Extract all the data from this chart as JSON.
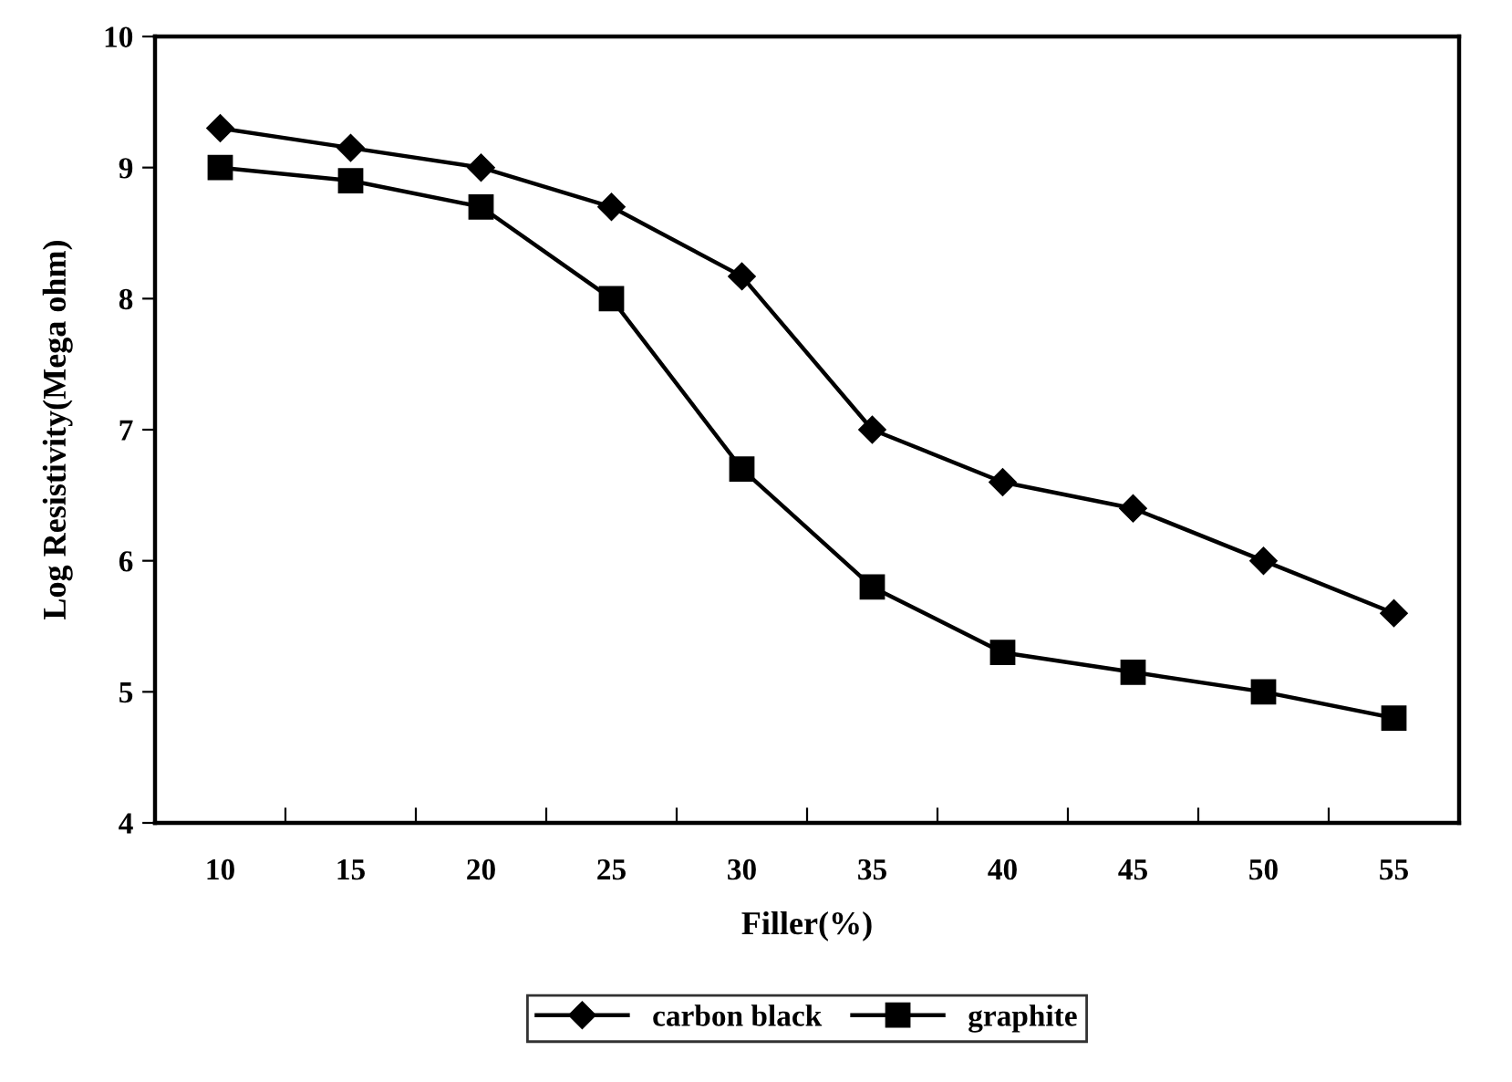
{
  "chart_data": {
    "type": "line",
    "xlabel": "Filler(%)",
    "ylabel": "Log Resistivity(Mega ohm)",
    "categories": [
      "10",
      "15",
      "20",
      "25",
      "30",
      "35",
      "40",
      "45",
      "50",
      "55"
    ],
    "series": [
      {
        "name": "carbon black",
        "color": "#000000",
        "marker": "diamond",
        "values": [
          9.3,
          9.15,
          9.0,
          8.7,
          8.17,
          7.0,
          6.6,
          6.4,
          6.0,
          5.6
        ]
      },
      {
        "name": "graphite",
        "color": "#000000",
        "marker": "square",
        "values": [
          9.0,
          8.9,
          8.7,
          8.0,
          6.7,
          5.8,
          5.3,
          5.15,
          5.0,
          4.8
        ]
      }
    ],
    "ylim": [
      4,
      10
    ],
    "yticks": [
      4,
      5,
      6,
      7,
      8,
      9,
      10
    ],
    "grid": false,
    "legend": "bottom",
    "line_style": "solid"
  }
}
